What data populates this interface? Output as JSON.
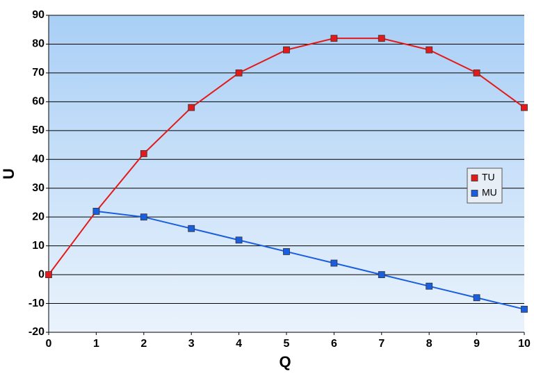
{
  "chart_data": {
    "type": "line",
    "x_label": "Q",
    "y_label": "U",
    "x": [
      0,
      1,
      2,
      3,
      4,
      5,
      6,
      7,
      8,
      9,
      10
    ],
    "series": [
      {
        "name": "TU",
        "color": "#e41a1a",
        "values": [
          0,
          22,
          42,
          58,
          70,
          78,
          82,
          82,
          78,
          70,
          58
        ]
      },
      {
        "name": "MU",
        "color": "#1a5ee0",
        "values": [
          null,
          22,
          20,
          16,
          12,
          8,
          4,
          0,
          -4,
          -8,
          -12
        ]
      }
    ],
    "xlim": [
      0,
      10
    ],
    "xticks": [
      0,
      1,
      2,
      3,
      4,
      5,
      6,
      7,
      8,
      9,
      10
    ],
    "ylim": [
      -20,
      90
    ],
    "yticks": [
      -20,
      -10,
      0,
      10,
      20,
      30,
      40,
      50,
      60,
      70,
      80,
      90
    ],
    "grid": true,
    "legend": "right"
  }
}
